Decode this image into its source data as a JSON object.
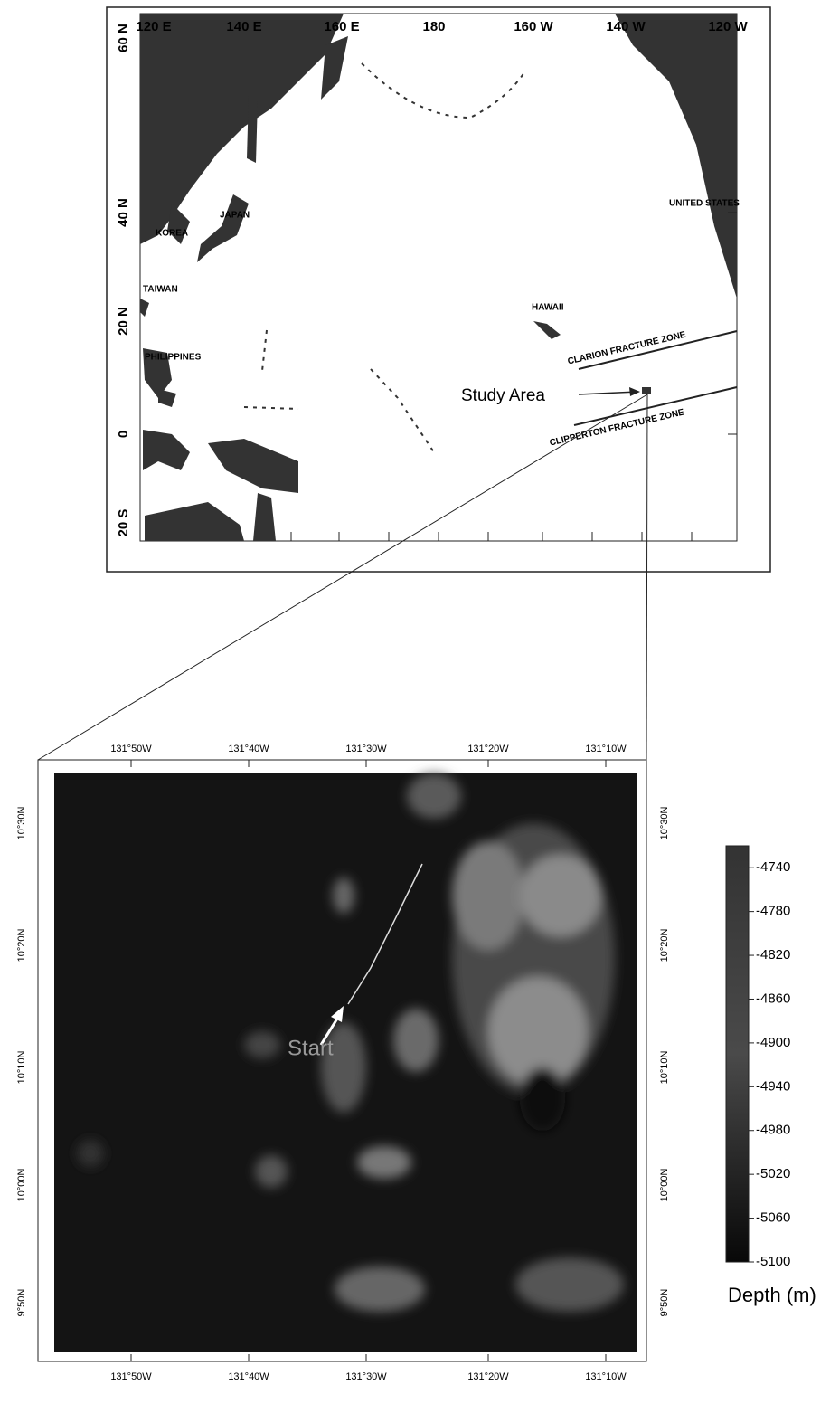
{
  "overview_map": {
    "longitudes": [
      "120 E",
      "140 E",
      "160 E",
      "180",
      "160 W",
      "140 W",
      "120 W"
    ],
    "latitudes": [
      "60 N",
      "40 N",
      "20 N",
      "0",
      "20 S"
    ],
    "places": [
      "KOREA",
      "JAPAN",
      "TAIWAN",
      "PHILIPPINES",
      "HAWAII",
      "UNITED STATES"
    ],
    "study_area": "Study  Area",
    "fracture_zones": [
      "CLARION FRACTURE ZONE",
      "CLIPPERTON FRACTURE ZONE"
    ]
  },
  "detail_map": {
    "longitudes": [
      "131°50W",
      "131°40W",
      "131°30W",
      "131°20W",
      "131°10W"
    ],
    "latitudes": [
      "10°30N",
      "10°20N",
      "10°10N",
      "10°00N",
      "9°50N"
    ],
    "start_label": "Start"
  },
  "colorbar": {
    "label": "Depth (m)",
    "lim": [
      -5100,
      -4720
    ],
    "ticks": [
      -4740,
      -4780,
      -4820,
      -4860,
      -4900,
      -4940,
      -4980,
      -5020,
      -5060,
      -5100
    ]
  }
}
